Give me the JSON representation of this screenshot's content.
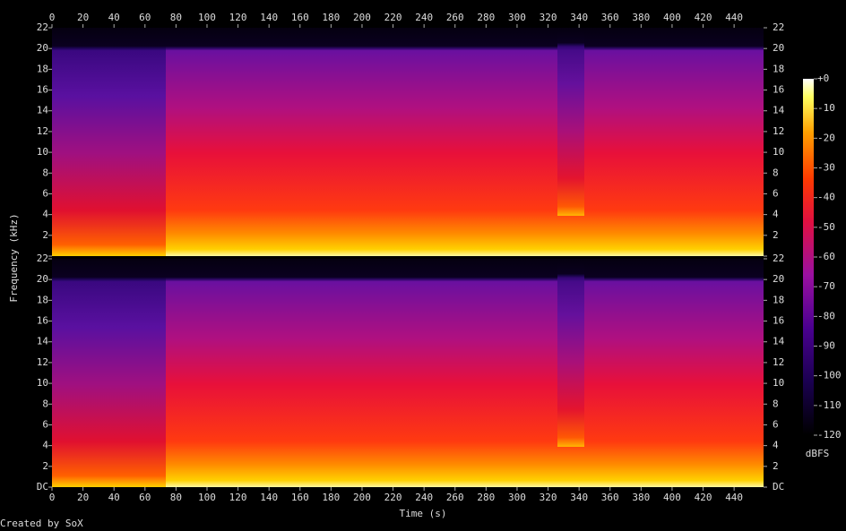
{
  "chart_data": {
    "type": "spectrogram",
    "xlabel": "Time (s)",
    "ylabel": "Frequency (kHz)",
    "xlim": [
      0,
      459
    ],
    "xticks": [
      0,
      20,
      40,
      60,
      80,
      100,
      120,
      140,
      160,
      180,
      200,
      220,
      240,
      260,
      280,
      300,
      320,
      340,
      360,
      380,
      400,
      420,
      440
    ],
    "ylim": [
      0,
      22
    ],
    "yticks": [
      {
        "value": 0,
        "label": "DC"
      },
      2,
      4,
      6,
      8,
      10,
      12,
      14,
      16,
      18,
      20,
      22
    ],
    "colorbar": {
      "label": "dBFS",
      "lim": [
        -120,
        0
      ],
      "ticks": [
        {
          "value": 0,
          "label": "+0"
        },
        -10,
        -20,
        -30,
        -40,
        -50,
        -60,
        -70,
        -80,
        -90,
        -100,
        -110,
        -120
      ]
    },
    "credit": "Created by SoX"
  }
}
